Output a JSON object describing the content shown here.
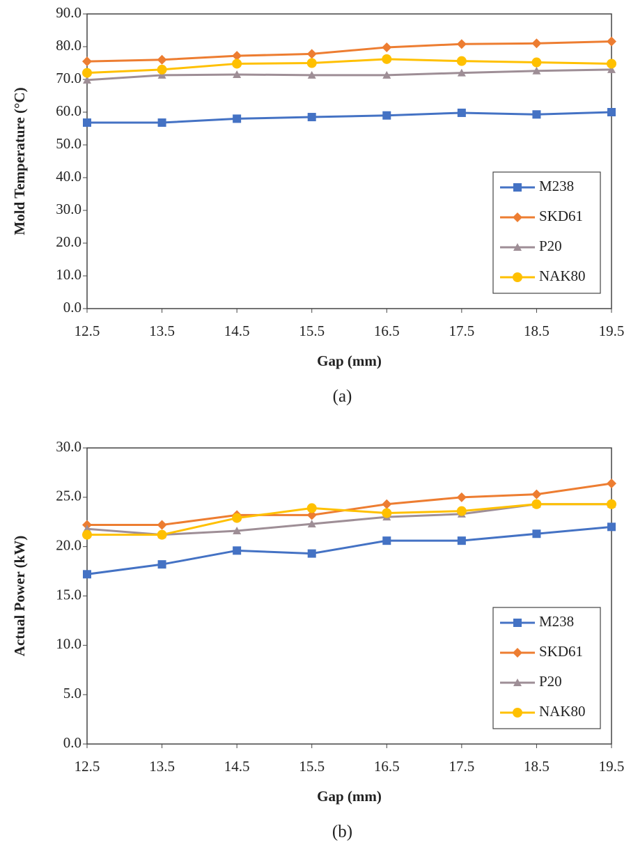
{
  "chart_data": [
    {
      "type": "line",
      "caption": "(a)",
      "x_label": "Gap (mm)",
      "y_label": "Mold Temperature (°C)",
      "x": [
        12.5,
        13.5,
        14.5,
        15.5,
        16.5,
        17.5,
        18.5,
        19.5
      ],
      "xlim": [
        12.5,
        19.5
      ],
      "xticks": [
        12.5,
        13.5,
        14.5,
        15.5,
        16.5,
        17.5,
        18.5,
        19.5
      ],
      "ylim": [
        0,
        90
      ],
      "yticks": [
        {
          "value": 0,
          "label": "0.0"
        },
        {
          "value": 10,
          "label": "10.0"
        },
        {
          "value": 20,
          "label": "20.0"
        },
        {
          "value": 30,
          "label": "30.0"
        },
        {
          "value": 40,
          "label": "40.0"
        },
        {
          "value": 50,
          "label": "50.0"
        },
        {
          "value": 60,
          "label": "60.0"
        },
        {
          "value": 70,
          "label": "70.0"
        },
        {
          "value": 80,
          "label": "80.0"
        },
        {
          "value": 90,
          "label": "90.0"
        }
      ],
      "legend": "lower right",
      "series": [
        {
          "name": "M238",
          "color": "#4472c4",
          "marker": "square",
          "values": [
            56.8,
            56.8,
            58.0,
            58.5,
            59.0,
            59.8,
            59.3,
            60.0
          ]
        },
        {
          "name": "SKD61",
          "color": "#ed7d31",
          "marker": "diamond",
          "values": [
            75.5,
            76.0,
            77.2,
            77.8,
            79.8,
            80.8,
            81.0,
            81.6
          ]
        },
        {
          "name": "P20",
          "color": "#9e8e96",
          "marker": "triangle",
          "values": [
            69.8,
            71.3,
            71.5,
            71.3,
            71.3,
            72.0,
            72.6,
            73.0
          ]
        },
        {
          "name": "NAK80",
          "color": "#ffc000",
          "marker": "circle",
          "values": [
            72.0,
            73.0,
            74.8,
            75.0,
            76.2,
            75.6,
            75.2,
            74.8
          ]
        }
      ]
    },
    {
      "type": "line",
      "caption": "(b)",
      "x_label": "Gap (mm)",
      "y_label": "Actual Power (kW)",
      "x": [
        12.5,
        13.5,
        14.5,
        15.5,
        16.5,
        17.5,
        18.5,
        19.5
      ],
      "xlim": [
        12.5,
        19.5
      ],
      "xticks": [
        12.5,
        13.5,
        14.5,
        15.5,
        16.5,
        17.5,
        18.5,
        19.5
      ],
      "ylim": [
        0,
        30
      ],
      "yticks": [
        {
          "value": 0,
          "label": "0.0"
        },
        {
          "value": 5,
          "label": "5.0"
        },
        {
          "value": 10,
          "label": "10.0"
        },
        {
          "value": 15,
          "label": "15.0"
        },
        {
          "value": 20,
          "label": "20.0"
        },
        {
          "value": 25,
          "label": "25.0"
        },
        {
          "value": 30,
          "label": "30.0"
        }
      ],
      "legend": "lower right",
      "series": [
        {
          "name": "M238",
          "color": "#4472c4",
          "marker": "square",
          "values": [
            17.2,
            18.2,
            19.6,
            19.3,
            20.6,
            20.6,
            21.3,
            22.0
          ]
        },
        {
          "name": "SKD61",
          "color": "#ed7d31",
          "marker": "diamond",
          "values": [
            22.2,
            22.2,
            23.2,
            23.2,
            24.3,
            25.0,
            25.3,
            26.4
          ]
        },
        {
          "name": "P20",
          "color": "#9e8e96",
          "marker": "triangle",
          "values": [
            21.8,
            21.2,
            21.6,
            22.3,
            23.0,
            23.3,
            24.3,
            24.3
          ]
        },
        {
          "name": "NAK80",
          "color": "#ffc000",
          "marker": "circle",
          "values": [
            21.2,
            21.2,
            22.9,
            23.9,
            23.4,
            23.6,
            24.3,
            24.3
          ]
        }
      ]
    }
  ]
}
